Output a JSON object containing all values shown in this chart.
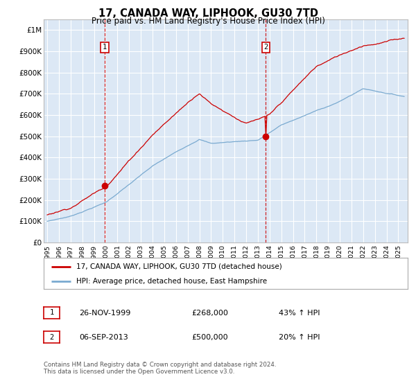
{
  "title": "17, CANADA WAY, LIPHOOK, GU30 7TD",
  "subtitle": "Price paid vs. HM Land Registry's House Price Index (HPI)",
  "ylabel_ticks": [
    "£0",
    "£100K",
    "£200K",
    "£300K",
    "£400K",
    "£500K",
    "£600K",
    "£700K",
    "£800K",
    "£900K",
    "£1M"
  ],
  "ytick_values": [
    0,
    100000,
    200000,
    300000,
    400000,
    500000,
    600000,
    700000,
    800000,
    900000,
    1000000
  ],
  "ylim": [
    0,
    1050000
  ],
  "xlim_start": 1994.7,
  "xlim_end": 2025.8,
  "background_color": "#dce8f5",
  "fig_bg_color": "#ffffff",
  "grid_color": "#ffffff",
  "red_line_color": "#cc0000",
  "blue_line_color": "#7aaad0",
  "sale1_x": 1999.9,
  "sale1_y": 268000,
  "sale2_x": 2013.68,
  "sale2_y": 500000,
  "vline_color": "#cc0000",
  "marker_box_color": "#cc0000",
  "legend_label1": "17, CANADA WAY, LIPHOOK, GU30 7TD (detached house)",
  "legend_label2": "HPI: Average price, detached house, East Hampshire",
  "table_row1": [
    "1",
    "26-NOV-1999",
    "£268,000",
    "43% ↑ HPI"
  ],
  "table_row2": [
    "2",
    "06-SEP-2013",
    "£500,000",
    "20% ↑ HPI"
  ],
  "footnote": "Contains HM Land Registry data © Crown copyright and database right 2024.\nThis data is licensed under the Open Government Licence v3.0.",
  "xtick_years": [
    1995,
    1996,
    1997,
    1998,
    1999,
    2000,
    2001,
    2002,
    2003,
    2004,
    2005,
    2006,
    2007,
    2008,
    2009,
    2010,
    2011,
    2012,
    2013,
    2014,
    2015,
    2016,
    2017,
    2018,
    2019,
    2020,
    2021,
    2022,
    2023,
    2024,
    2025
  ]
}
